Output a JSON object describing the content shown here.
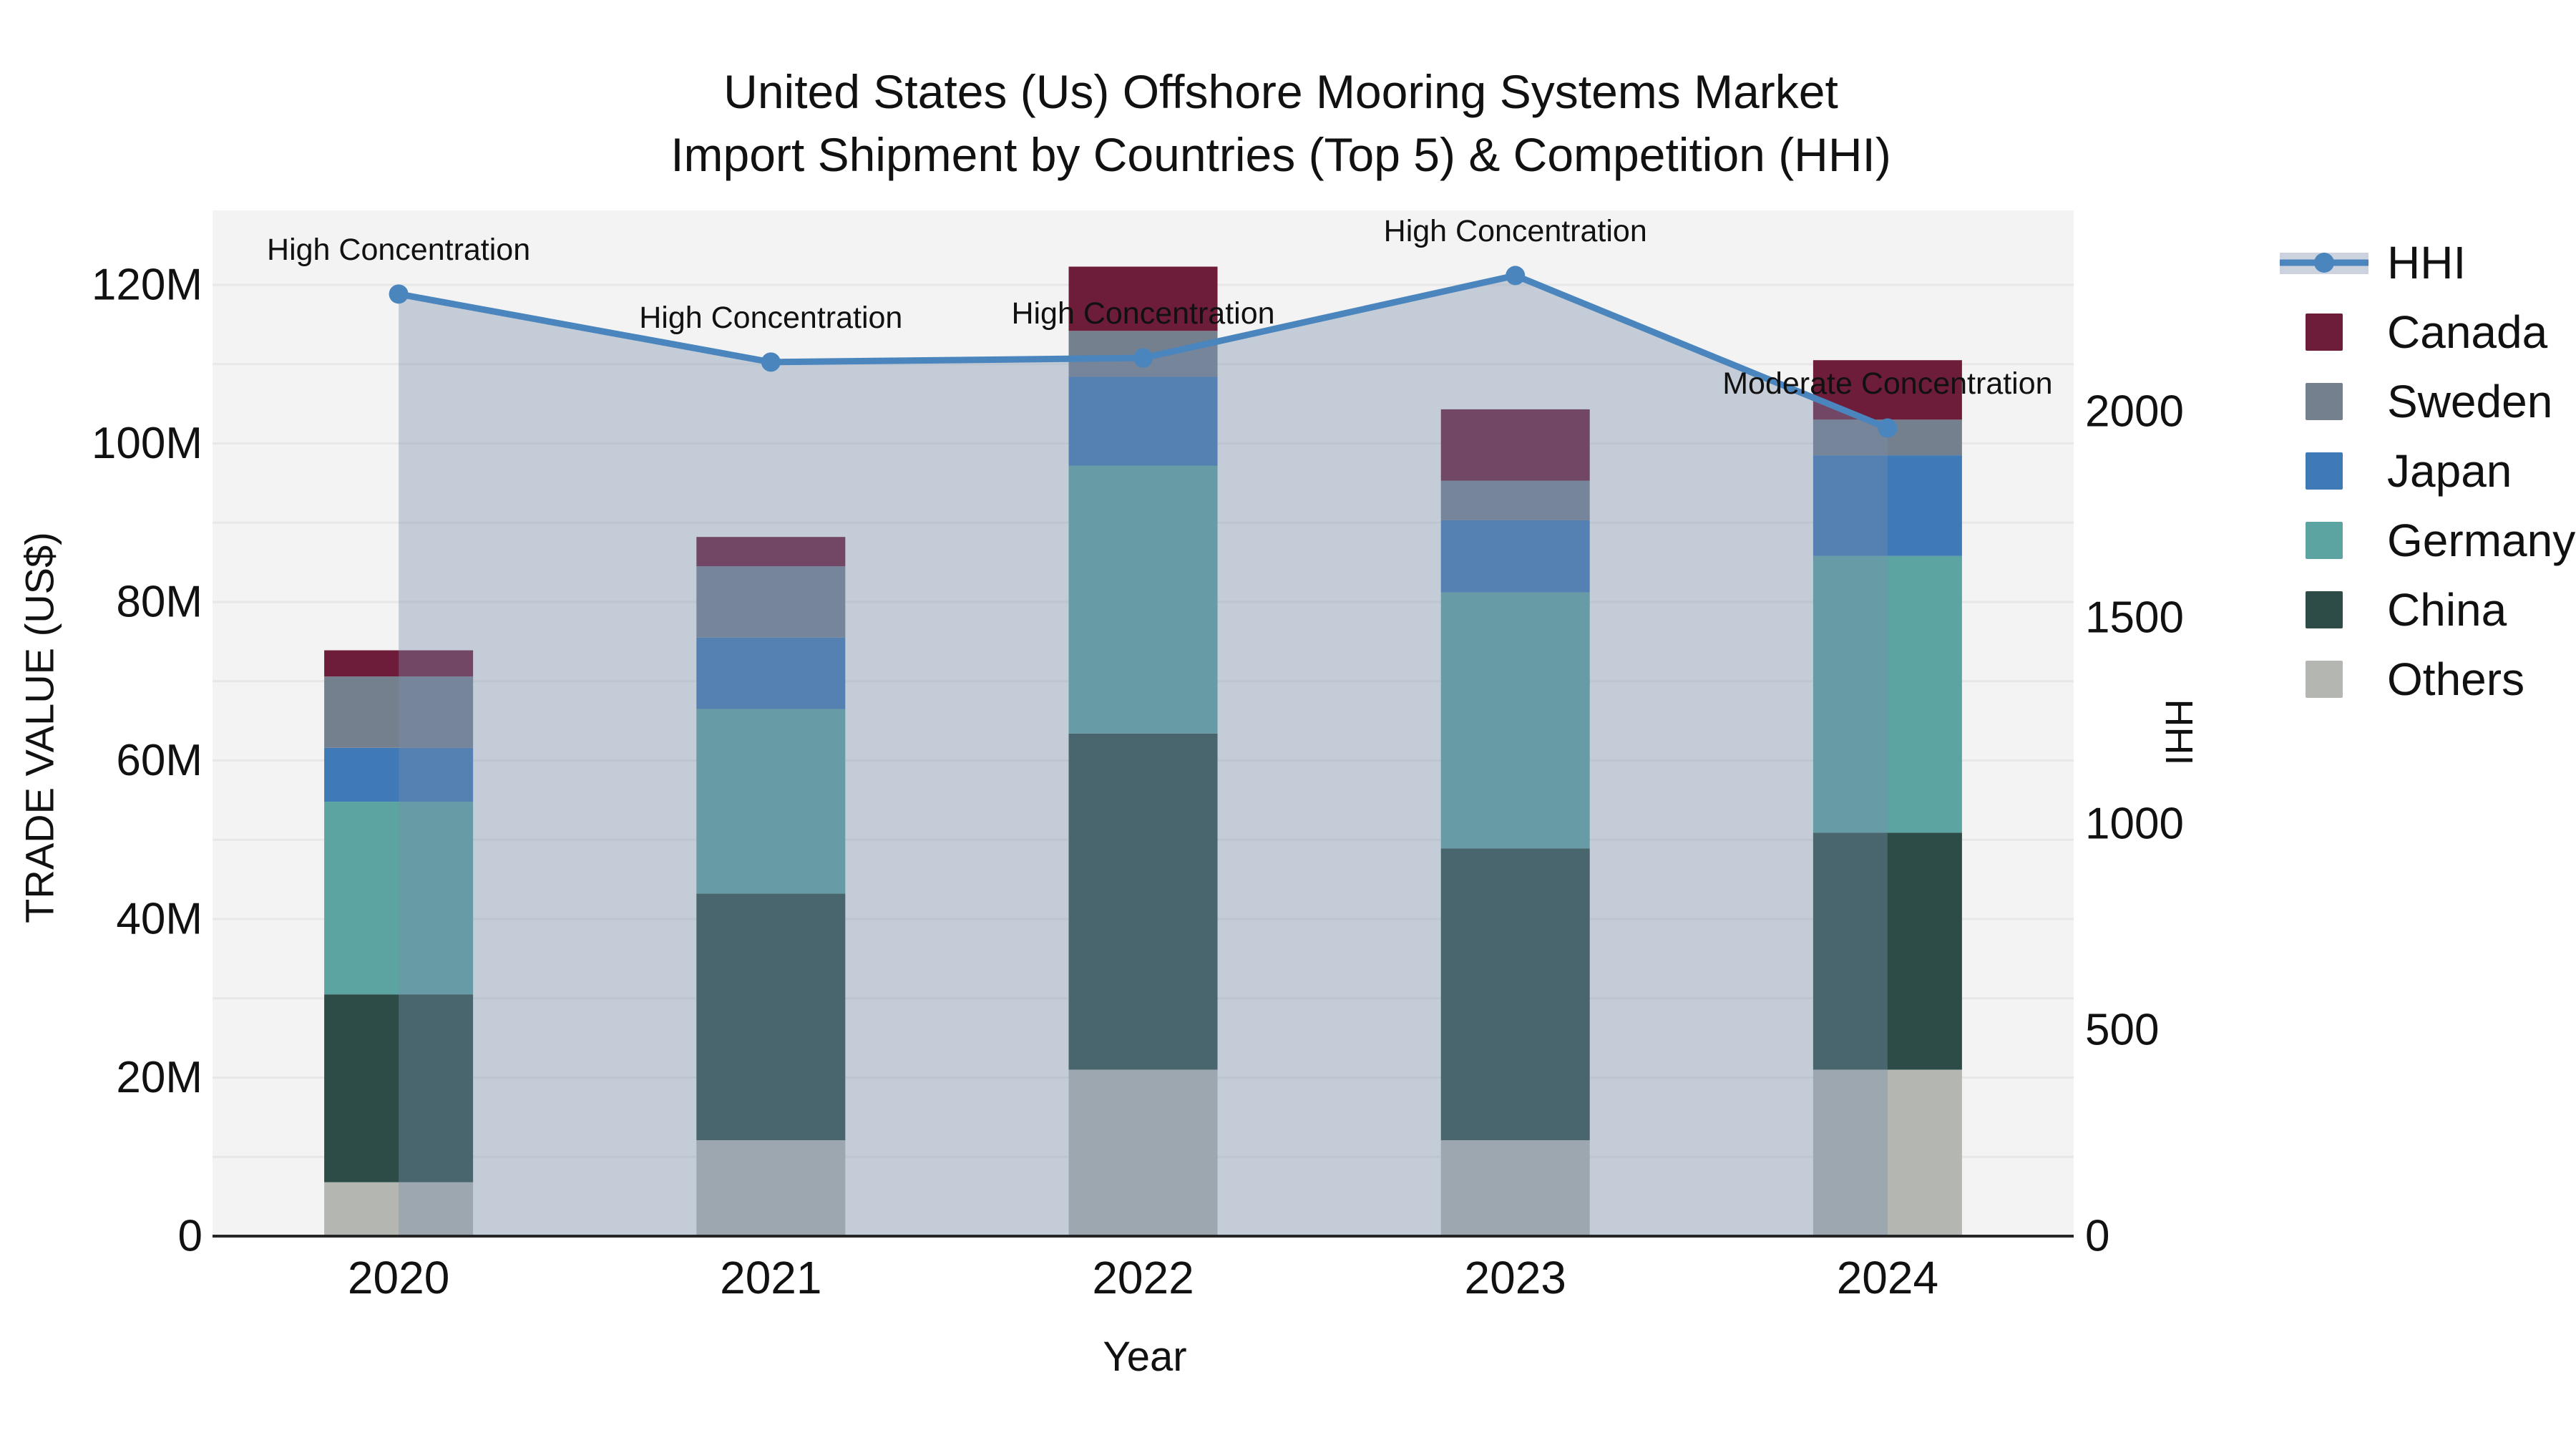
{
  "title": {
    "line1": "United States (Us) Offshore Mooring Systems Market",
    "line2": "Import Shipment by Countries (Top 5) & Competition (HHI)"
  },
  "axis_titles": {
    "left": "TRADE VALUE (US$)",
    "bottom": "Year",
    "right": "HHI"
  },
  "colors": {
    "plot_bg": "#f2f3f2",
    "grid": "#e7e7e8",
    "axis_line": "#262626",
    "text": "#111111",
    "hhi_line": "#4a85bd",
    "area_fill": "rgba(122,141,171,0.38)",
    "legend_hhi_band": "#ccd3de"
  },
  "chart_data": {
    "type": "bar",
    "subtype": "stacked-bars-with-line-overlay",
    "title": "United States (Us) Offshore Mooring Systems Market Import Shipment by Countries (Top 5) & Competition (HHI)",
    "xlabel": "Year",
    "ylabel_left": "TRADE VALUE (US$)",
    "ylabel_right": "HHI",
    "categories": [
      "2020",
      "2021",
      "2022",
      "2023",
      "2024"
    ],
    "series": [
      {
        "name": "Others",
        "color": "#b4b6b2",
        "values": [
          6.8,
          12.1,
          21.0,
          12.1,
          21.0
        ]
      },
      {
        "name": "China",
        "color": "#2d4c47",
        "values": [
          23.7,
          31.1,
          42.4,
          36.8,
          29.9
        ]
      },
      {
        "name": "Germany",
        "color": "#5ca4a2",
        "values": [
          24.3,
          23.3,
          33.8,
          32.3,
          34.9
        ]
      },
      {
        "name": "Japan",
        "color": "#3f7ab6",
        "values": [
          6.8,
          9.0,
          11.2,
          9.1,
          12.7
        ]
      },
      {
        "name": "Sweden",
        "color": "#75808f",
        "values": [
          9.0,
          9.0,
          5.8,
          5.0,
          4.5
        ]
      },
      {
        "name": "Canada",
        "color": "#6d1c3a",
        "values": [
          3.3,
          3.7,
          8.1,
          9.0,
          7.5
        ]
      }
    ],
    "bar_totals": [
      73.9,
      88.2,
      122.3,
      104.3,
      110.5
    ],
    "line": {
      "name": "HHI",
      "values": [
        2285,
        2120,
        2130,
        2330,
        1960
      ]
    },
    "annotations": [
      "High Concentration",
      "High Concentration",
      "High Concentration",
      "High Concentration",
      "Moderate Concentration"
    ],
    "left_axis": {
      "unit": "M (US$)",
      "ticks": [
        0,
        20,
        40,
        60,
        80,
        100,
        120
      ],
      "tick_labels": [
        "0",
        "20M",
        "40M",
        "60M",
        "80M",
        "100M",
        "120M"
      ],
      "grid_step": 10,
      "max": 120
    },
    "right_axis": {
      "ticks": [
        0,
        500,
        1000,
        1500,
        2000
      ],
      "tick_labels": [
        "0",
        "500",
        "1000",
        "1500",
        "2000"
      ],
      "max": 2000
    },
    "legend": [
      "HHI",
      "Canada",
      "Sweden",
      "Japan",
      "Germany",
      "China",
      "Others"
    ],
    "legend_position": "right",
    "grid": true
  }
}
